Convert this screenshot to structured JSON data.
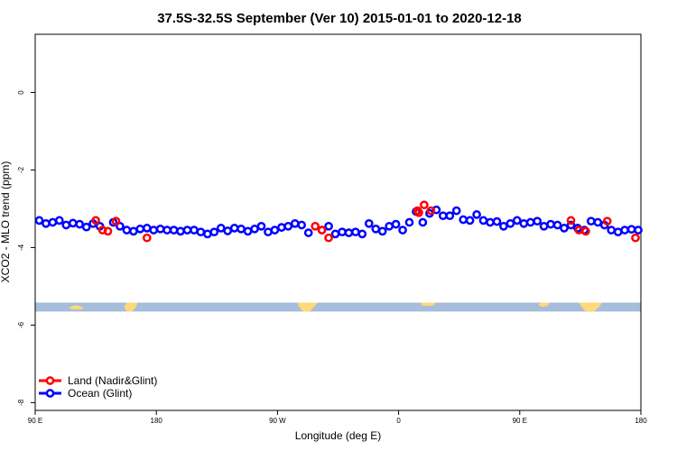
{
  "chart_data": {
    "type": "scatter",
    "title": "37.5S-32.5S September (Ver 10)   2015-01-01 to 2020-12-18",
    "xlabel": "Longitude (deg E)",
    "ylabel": "XCO2 - MLO trend (ppm)",
    "xlim": [
      90,
      540
    ],
    "ylim": [
      -8.2,
      1.5
    ],
    "x_ticks": [
      {
        "value": 90,
        "label": "90 E"
      },
      {
        "value": 180,
        "label": "180"
      },
      {
        "value": 270,
        "label": "90 W"
      },
      {
        "value": 360,
        "label": "0"
      },
      {
        "value": 450,
        "label": "90 E"
      },
      {
        "value": 540,
        "label": "180"
      }
    ],
    "y_ticks": [
      {
        "value": 0,
        "label": "0"
      },
      {
        "value": -2,
        "label": "-2"
      },
      {
        "value": -4,
        "label": "-4"
      },
      {
        "value": -6,
        "label": "-6"
      },
      {
        "value": -8,
        "label": "-8"
      }
    ],
    "legend_position": "bottom-left",
    "map_strip": {
      "y_range": [
        -5.65,
        -5.42
      ],
      "ocean_color": "#a6bddb",
      "land_color": "#ffd97a"
    },
    "series": [
      {
        "name": "Land (Nadir&Glint)",
        "color": "#ff0000",
        "x": [
          135,
          140,
          144,
          150,
          173,
          298,
          303,
          308,
          374,
          375,
          379,
          384,
          488,
          494,
          499,
          515,
          536
        ],
        "y": [
          -3.3,
          -3.55,
          -3.58,
          -3.32,
          -3.75,
          -3.45,
          -3.55,
          -3.75,
          -3.05,
          -3.1,
          -2.9,
          -3.05,
          -3.3,
          -3.55,
          -3.58,
          -3.32,
          -3.75
        ]
      },
      {
        "name": "Ocean (Glint)",
        "color": "#0000ff",
        "x": [
          93,
          98,
          103,
          108,
          113,
          118,
          123,
          128,
          133,
          138,
          148,
          153,
          158,
          163,
          168,
          173,
          178,
          183,
          188,
          193,
          198,
          203,
          208,
          213,
          218,
          223,
          228,
          233,
          238,
          243,
          248,
          253,
          258,
          263,
          268,
          273,
          278,
          283,
          288,
          293,
          303,
          308,
          313,
          318,
          323,
          328,
          333,
          338,
          343,
          348,
          353,
          358,
          363,
          368,
          373,
          378,
          383,
          388,
          393,
          398,
          403,
          408,
          413,
          418,
          423,
          428,
          433,
          438,
          443,
          448,
          453,
          458,
          463,
          468,
          473,
          478,
          483,
          488,
          493,
          498,
          503,
          508,
          513,
          518,
          523,
          528,
          533,
          538
        ],
        "y": [
          -3.3,
          -3.38,
          -3.35,
          -3.3,
          -3.42,
          -3.37,
          -3.4,
          -3.47,
          -3.38,
          -3.45,
          -3.35,
          -3.45,
          -3.55,
          -3.58,
          -3.52,
          -3.5,
          -3.55,
          -3.52,
          -3.55,
          -3.55,
          -3.58,
          -3.55,
          -3.55,
          -3.6,
          -3.65,
          -3.6,
          -3.5,
          -3.57,
          -3.5,
          -3.52,
          -3.58,
          -3.52,
          -3.45,
          -3.6,
          -3.55,
          -3.48,
          -3.45,
          -3.38,
          -3.42,
          -3.62,
          -3.55,
          -3.45,
          -3.65,
          -3.6,
          -3.62,
          -3.6,
          -3.65,
          -3.38,
          -3.52,
          -3.58,
          -3.45,
          -3.4,
          -3.55,
          -3.35,
          -3.07,
          -3.35,
          -3.12,
          -3.03,
          -3.18,
          -3.18,
          -3.05,
          -3.28,
          -3.3,
          -3.15,
          -3.3,
          -3.35,
          -3.33,
          -3.45,
          -3.38,
          -3.3,
          -3.38,
          -3.35,
          -3.32,
          -3.45,
          -3.4,
          -3.42,
          -3.5,
          -3.42,
          -3.5,
          -3.55,
          -3.32,
          -3.35,
          -3.42,
          -3.55,
          -3.6,
          -3.55,
          -3.53,
          -3.55
        ]
      }
    ]
  }
}
